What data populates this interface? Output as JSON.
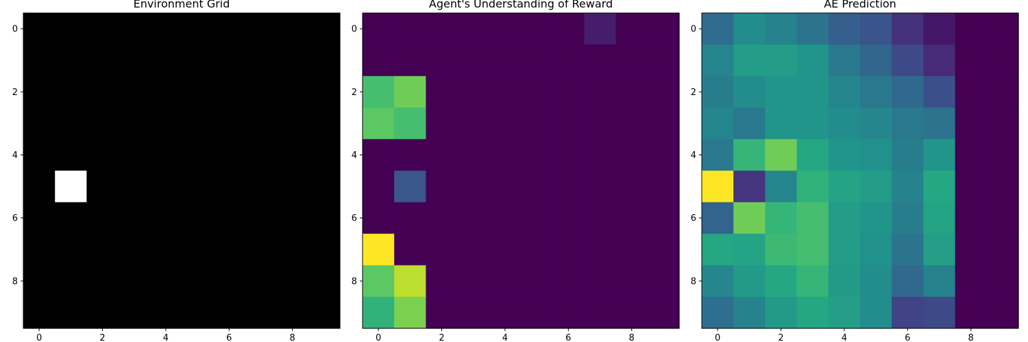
{
  "chart_data": [
    {
      "type": "heatmap",
      "title": "Environment Grid",
      "colormap": "gray",
      "vmin": 0,
      "vmax": 1,
      "x_ticks": [
        "0",
        "2",
        "4",
        "6",
        "8"
      ],
      "y_ticks": [
        "0",
        "2",
        "4",
        "6",
        "8"
      ],
      "values": [
        [
          0,
          0,
          0,
          0,
          0,
          0,
          0,
          0,
          0,
          0
        ],
        [
          0,
          0,
          0,
          0,
          0,
          0,
          0,
          0,
          0,
          0
        ],
        [
          0,
          0,
          0,
          0,
          0,
          0,
          0,
          0,
          0,
          0
        ],
        [
          0,
          0,
          0,
          0,
          0,
          0,
          0,
          0,
          0,
          0
        ],
        [
          0,
          0,
          0,
          0,
          0,
          0,
          0,
          0,
          0,
          0
        ],
        [
          0,
          1,
          0,
          0,
          0,
          0,
          0,
          0,
          0,
          0
        ],
        [
          0,
          0,
          0,
          0,
          0,
          0,
          0,
          0,
          0,
          0
        ],
        [
          0,
          0,
          0,
          0,
          0,
          0,
          0,
          0,
          0,
          0
        ],
        [
          0,
          0,
          0,
          0,
          0,
          0,
          0,
          0,
          0,
          0
        ],
        [
          0,
          0,
          0,
          0,
          0,
          0,
          0,
          0,
          0,
          0
        ]
      ]
    },
    {
      "type": "heatmap",
      "title": "Agent's Understanding of Reward",
      "colormap": "viridis",
      "vmin": 0,
      "vmax": 1,
      "x_ticks": [
        "0",
        "2",
        "4",
        "6",
        "8"
      ],
      "y_ticks": [
        "0",
        "2",
        "4",
        "6",
        "8"
      ],
      "values": [
        [
          0,
          0,
          0,
          0,
          0,
          0,
          0,
          0.08,
          0,
          0
        ],
        [
          0,
          0,
          0,
          0,
          0,
          0,
          0,
          0,
          0,
          0
        ],
        [
          0.7,
          0.78,
          0,
          0,
          0,
          0,
          0,
          0,
          0,
          0
        ],
        [
          0.75,
          0.7,
          0,
          0,
          0,
          0,
          0,
          0,
          0,
          0
        ],
        [
          0,
          0,
          0,
          0,
          0,
          0,
          0,
          0,
          0,
          0
        ],
        [
          0,
          0.27,
          0,
          0,
          0,
          0,
          0,
          0,
          0,
          0
        ],
        [
          0,
          0,
          0,
          0,
          0,
          0,
          0,
          0,
          0,
          0
        ],
        [
          1.0,
          0,
          0,
          0,
          0,
          0,
          0,
          0,
          0,
          0
        ],
        [
          0.75,
          0.9,
          0,
          0,
          0,
          0,
          0,
          0,
          0,
          0
        ],
        [
          0.65,
          0.8,
          0,
          0,
          0,
          0,
          0,
          0,
          0,
          0
        ]
      ]
    },
    {
      "type": "heatmap",
      "title": "AE Prediction",
      "colormap": "viridis",
      "vmin": 0,
      "vmax": 1,
      "x_ticks": [
        "0",
        "2",
        "4",
        "6",
        "8"
      ],
      "y_ticks": [
        "0",
        "2",
        "4",
        "6",
        "8"
      ],
      "values": [
        [
          0.35,
          0.48,
          0.44,
          0.38,
          0.3,
          0.26,
          0.14,
          0.06,
          0,
          0
        ],
        [
          0.45,
          0.55,
          0.55,
          0.52,
          0.4,
          0.33,
          0.22,
          0.12,
          0,
          0
        ],
        [
          0.42,
          0.48,
          0.52,
          0.52,
          0.45,
          0.4,
          0.34,
          0.24,
          0,
          0
        ],
        [
          0.45,
          0.4,
          0.52,
          0.52,
          0.48,
          0.46,
          0.4,
          0.38,
          0,
          0
        ],
        [
          0.4,
          0.66,
          0.78,
          0.6,
          0.52,
          0.5,
          0.42,
          0.52,
          0,
          0
        ],
        [
          1.0,
          0.15,
          0.45,
          0.65,
          0.58,
          0.55,
          0.44,
          0.6,
          0,
          0
        ],
        [
          0.32,
          0.78,
          0.66,
          0.7,
          0.55,
          0.52,
          0.42,
          0.58,
          0,
          0
        ],
        [
          0.6,
          0.58,
          0.68,
          0.7,
          0.55,
          0.5,
          0.38,
          0.56,
          0,
          0
        ],
        [
          0.46,
          0.54,
          0.6,
          0.66,
          0.54,
          0.48,
          0.34,
          0.44,
          0,
          0
        ],
        [
          0.36,
          0.44,
          0.54,
          0.6,
          0.56,
          0.48,
          0.2,
          0.22,
          0,
          0
        ]
      ]
    }
  ]
}
